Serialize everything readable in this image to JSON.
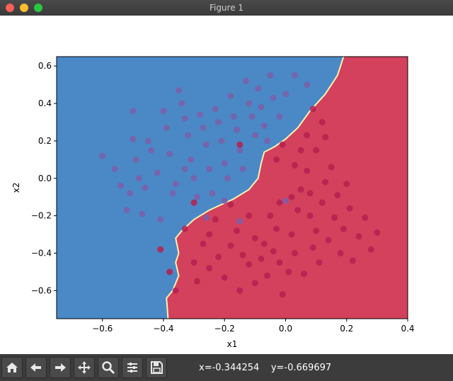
{
  "window": {
    "title": "Figure 1"
  },
  "status": {
    "coords": "x=-0.344254    y=-0.669697"
  },
  "toolbar": {
    "buttons": [
      "home-icon",
      "back-arrow-icon",
      "forward-arrow-icon",
      "pan-move-icon",
      "zoom-magnifier-icon",
      "configure-subplots-icon",
      "save-floppy-icon"
    ]
  },
  "chart_data": {
    "type": "scatter",
    "xlabel": "x1",
    "ylabel": "x2",
    "xlim": [
      -0.75,
      0.4
    ],
    "ylim": [
      -0.75,
      0.65
    ],
    "xticks": [
      "−0.6",
      "−0.4",
      "−0.2",
      "0.0",
      "0.2",
      "0.4"
    ],
    "xtick_values": [
      -0.6,
      -0.4,
      -0.2,
      0.0,
      0.2,
      0.4
    ],
    "yticks": [
      "−0.6",
      "−0.4",
      "−0.2",
      "0.0",
      "0.2",
      "0.4",
      "0.6"
    ],
    "ytick_values": [
      -0.6,
      -0.4,
      -0.2,
      0.0,
      0.2,
      0.4,
      0.6
    ],
    "grid": false,
    "colors": {
      "class0_region": "#4a89c6",
      "class1_region": "#d4415c",
      "class0_point": "#7b5fa8",
      "class1_point": "#b5204f",
      "boundary": "#f6f2b0"
    },
    "decision_boundary": [
      [
        -0.385,
        -0.75
      ],
      [
        -0.39,
        -0.64
      ],
      [
        -0.37,
        -0.6
      ],
      [
        -0.35,
        -0.52
      ],
      [
        -0.36,
        -0.45
      ],
      [
        -0.35,
        -0.4
      ],
      [
        -0.36,
        -0.32
      ],
      [
        -0.34,
        -0.28
      ],
      [
        -0.3,
        -0.22
      ],
      [
        -0.25,
        -0.17
      ],
      [
        -0.17,
        -0.11
      ],
      [
        -0.12,
        -0.06
      ],
      [
        -0.09,
        0.0
      ],
      [
        -0.08,
        0.08
      ],
      [
        -0.07,
        0.14
      ],
      [
        -0.035,
        0.17
      ],
      [
        0.0,
        0.21
      ],
      [
        0.04,
        0.27
      ],
      [
        0.08,
        0.36
      ],
      [
        0.13,
        0.45
      ],
      [
        0.17,
        0.55
      ],
      [
        0.19,
        0.65
      ]
    ],
    "series": [
      {
        "class": 0,
        "points": [
          [
            -0.6,
            0.12
          ],
          [
            -0.56,
            0.05
          ],
          [
            -0.54,
            -0.04
          ],
          [
            -0.52,
            -0.17
          ],
          [
            -0.51,
            -0.08
          ],
          [
            -0.5,
            0.36
          ],
          [
            -0.5,
            0.21
          ],
          [
            -0.49,
            0.1
          ],
          [
            -0.48,
            0.0
          ],
          [
            -0.47,
            -0.19
          ],
          [
            -0.45,
            0.2
          ],
          [
            -0.44,
            0.15
          ],
          [
            -0.42,
            0.03
          ],
          [
            -0.41,
            -0.22
          ],
          [
            -0.4,
            0.36
          ],
          [
            -0.39,
            0.27
          ],
          [
            -0.38,
            0.13
          ],
          [
            -0.37,
            -0.08
          ],
          [
            -0.35,
            0.47
          ],
          [
            -0.34,
            0.4
          ],
          [
            -0.33,
            0.32
          ],
          [
            -0.32,
            0.23
          ],
          [
            -0.31,
            0.1
          ],
          [
            -0.3,
            0.0
          ],
          [
            -0.29,
            -0.1
          ],
          [
            -0.28,
            0.34
          ],
          [
            -0.27,
            0.27
          ],
          [
            -0.26,
            0.18
          ],
          [
            -0.25,
            0.05
          ],
          [
            -0.24,
            -0.08
          ],
          [
            -0.23,
            0.37
          ],
          [
            -0.22,
            0.3
          ],
          [
            -0.21,
            0.2
          ],
          [
            -0.2,
            0.08
          ],
          [
            -0.19,
            0.0
          ],
          [
            -0.18,
            0.44
          ],
          [
            -0.17,
            0.33
          ],
          [
            -0.16,
            0.26
          ],
          [
            -0.15,
            0.15
          ],
          [
            -0.14,
            0.05
          ],
          [
            -0.13,
            0.52
          ],
          [
            -0.12,
            0.4
          ],
          [
            -0.11,
            0.33
          ],
          [
            -0.1,
            0.23
          ],
          [
            -0.09,
            0.48
          ],
          [
            -0.08,
            0.38
          ],
          [
            -0.07,
            0.28
          ],
          [
            -0.06,
            0.2
          ],
          [
            -0.05,
            0.55
          ],
          [
            -0.04,
            0.43
          ],
          [
            -0.02,
            0.33
          ],
          [
            0.0,
            0.45
          ],
          [
            0.03,
            0.55
          ],
          [
            0.07,
            0.5
          ],
          [
            -0.15,
            -0.23
          ],
          [
            -0.2,
            -0.12
          ],
          [
            0.0,
            -0.12
          ],
          [
            -0.33,
            0.05
          ],
          [
            -0.36,
            -0.03
          ],
          [
            -0.46,
            -0.05
          ],
          [
            -0.26,
            -0.21
          ]
        ]
      },
      {
        "class": 1,
        "points": [
          [
            -0.3,
            -0.13
          ],
          [
            -0.15,
            0.18
          ],
          [
            -0.41,
            -0.38
          ],
          [
            -0.38,
            -0.5
          ],
          [
            -0.36,
            -0.6
          ],
          [
            -0.33,
            -0.27
          ],
          [
            -0.3,
            -0.45
          ],
          [
            -0.27,
            -0.35
          ],
          [
            -0.25,
            -0.3
          ],
          [
            -0.22,
            -0.42
          ],
          [
            -0.2,
            -0.53
          ],
          [
            -0.18,
            -0.36
          ],
          [
            -0.16,
            -0.28
          ],
          [
            -0.14,
            -0.41
          ],
          [
            -0.12,
            -0.46
          ],
          [
            -0.1,
            -0.32
          ],
          [
            -0.08,
            -0.43
          ],
          [
            -0.06,
            -0.52
          ],
          [
            -0.05,
            -0.2
          ],
          [
            -0.04,
            -0.39
          ],
          [
            -0.03,
            -0.27
          ],
          [
            -0.02,
            -0.45
          ],
          [
            -0.01,
            -0.62
          ],
          [
            0.01,
            -0.5
          ],
          [
            0.02,
            -0.3
          ],
          [
            0.03,
            -0.4
          ],
          [
            0.04,
            -0.17
          ],
          [
            0.05,
            -0.06
          ],
          [
            0.06,
            -0.51
          ],
          [
            0.07,
            0.04
          ],
          [
            0.08,
            -0.2
          ],
          [
            0.09,
            -0.37
          ],
          [
            0.1,
            -0.28
          ],
          [
            0.11,
            -0.45
          ],
          [
            0.12,
            -0.13
          ],
          [
            0.13,
            -0.02
          ],
          [
            0.14,
            -0.33
          ],
          [
            0.15,
            0.06
          ],
          [
            0.16,
            -0.21
          ],
          [
            0.17,
            -0.09
          ],
          [
            0.18,
            -0.4
          ],
          [
            0.19,
            -0.27
          ],
          [
            0.2,
            -0.03
          ],
          [
            0.21,
            -0.16
          ],
          [
            0.22,
            -0.44
          ],
          [
            0.24,
            -0.31
          ],
          [
            0.26,
            -0.21
          ],
          [
            0.28,
            -0.38
          ],
          [
            0.3,
            -0.29
          ],
          [
            0.05,
            0.15
          ],
          [
            0.07,
            0.23
          ],
          [
            0.1,
            0.15
          ],
          [
            0.12,
            0.3
          ],
          [
            0.09,
            0.37
          ],
          [
            0.13,
            0.22
          ],
          [
            0.03,
            0.07
          ],
          [
            -0.01,
            0.18
          ],
          [
            -0.03,
            0.1
          ],
          [
            0.02,
            -0.1
          ],
          [
            0.08,
            -0.08
          ],
          [
            -0.02,
            -0.13
          ],
          [
            -0.12,
            -0.2
          ],
          [
            -0.18,
            -0.14
          ],
          [
            -0.23,
            -0.22
          ],
          [
            -0.07,
            -0.35
          ],
          [
            -0.1,
            -0.56
          ],
          [
            -0.15,
            -0.6
          ],
          [
            -0.25,
            -0.48
          ],
          [
            -0.29,
            -0.55
          ]
        ]
      }
    ]
  }
}
